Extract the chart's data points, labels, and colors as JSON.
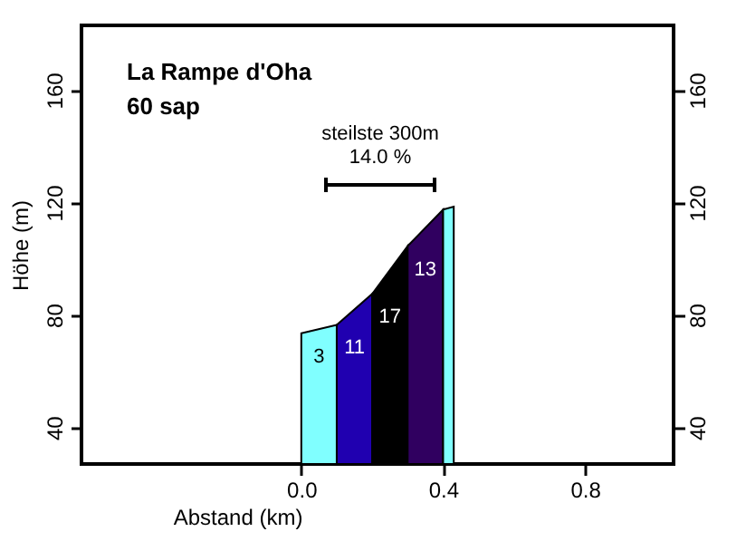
{
  "chart_data": {
    "type": "area",
    "title": "La Rampe d'Oha",
    "subtitle": "60 sap",
    "xlabel": "Abstand (km)",
    "ylabel": "Höhe (m)",
    "xlim": [
      -0.62,
      1.05
    ],
    "xticks": [
      {
        "value": 0,
        "label": "0.0"
      },
      0.4,
      0.8
    ],
    "ylim": [
      27,
      183
    ],
    "yticks": [
      40,
      80,
      120,
      160
    ],
    "y2lim": [
      27,
      183
    ],
    "y2ticks": [
      40,
      80,
      120,
      160
    ],
    "series": [
      {
        "color": "#80ffff",
        "x": [
          0,
          0.1
        ],
        "values": [
          73.5,
          76.5
        ]
      },
      {
        "color": "#2000b0",
        "x": [
          0.1,
          0.2
        ],
        "values": [
          76.5,
          87.5
        ]
      },
      {
        "color": "#000000",
        "x": [
          0.2,
          0.3
        ],
        "values": [
          87.5,
          104.5
        ]
      },
      {
        "color": "#300060",
        "x": [
          0.3,
          0.4
        ],
        "values": [
          104.5,
          117.5
        ]
      },
      {
        "color": "#80ffff",
        "x": [
          0.4,
          0.43
        ],
        "values": [
          117.5,
          118.5
        ]
      }
    ],
    "annotations": [
      "3",
      "11",
      "17",
      "13",
      "steilste 300m",
      "14.0 %"
    ],
    "grid": false
  }
}
